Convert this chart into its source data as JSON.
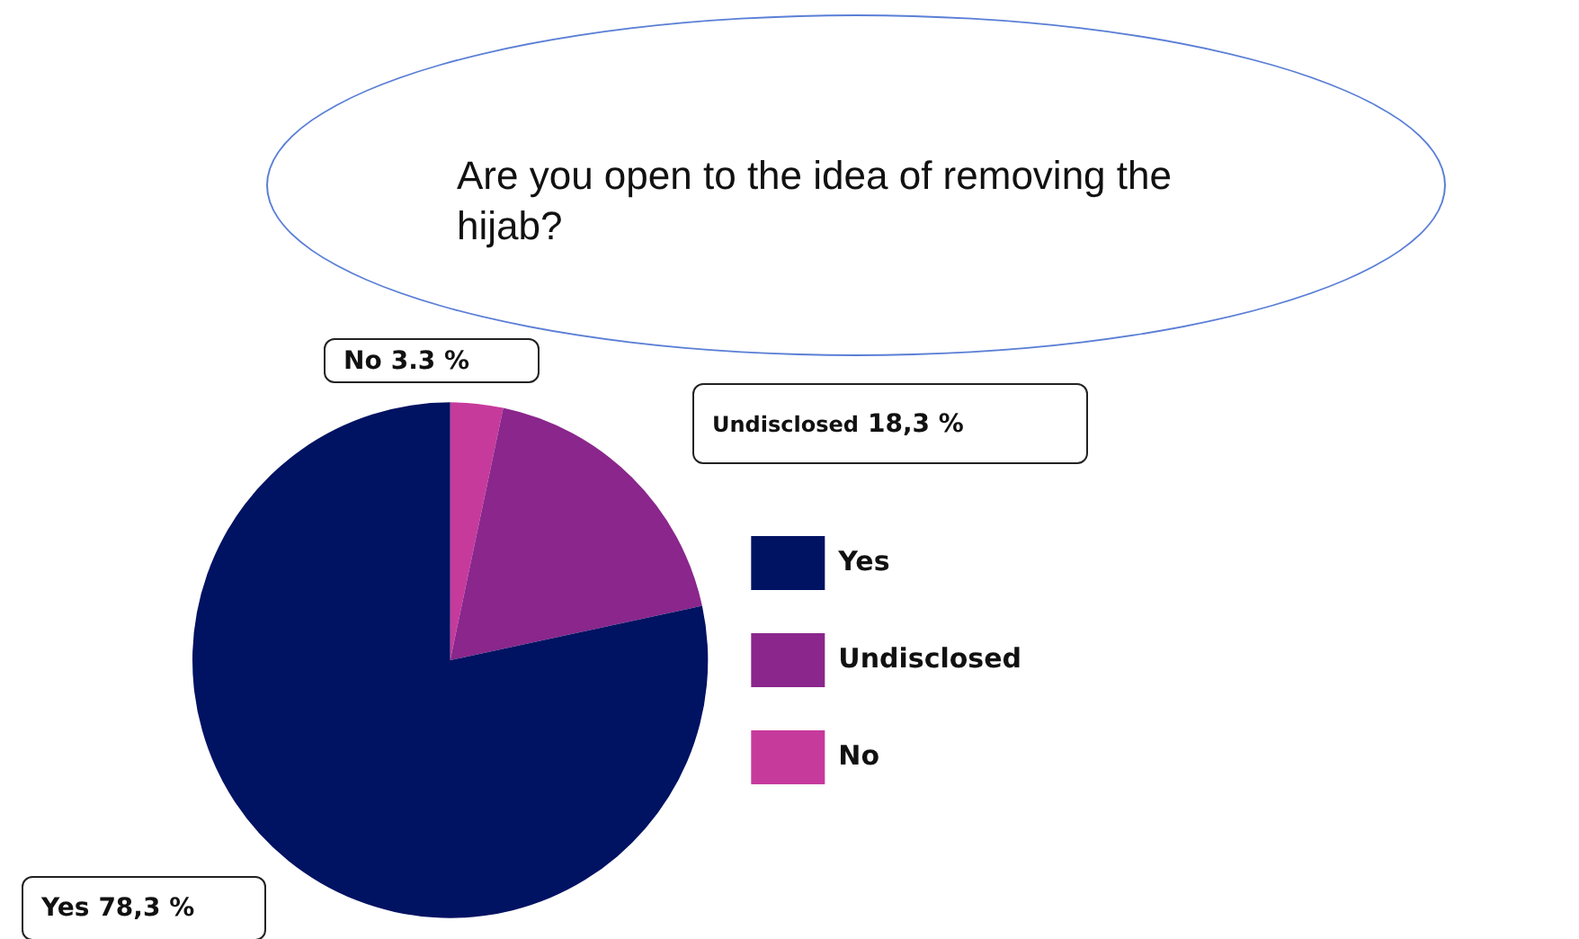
{
  "chart_data": {
    "type": "pie",
    "title": "Are you open to the idea of removing the hijab?",
    "categories": [
      "No",
      "Undisclosed",
      "Yes"
    ],
    "values": [
      3.3,
      18.3,
      78.3
    ],
    "value_labels": [
      "3.3 %",
      "18,3 %",
      "78,3 %"
    ],
    "colors": [
      "#c63a9c",
      "#8a268c",
      "#001262"
    ],
    "legend": "right"
  }
}
